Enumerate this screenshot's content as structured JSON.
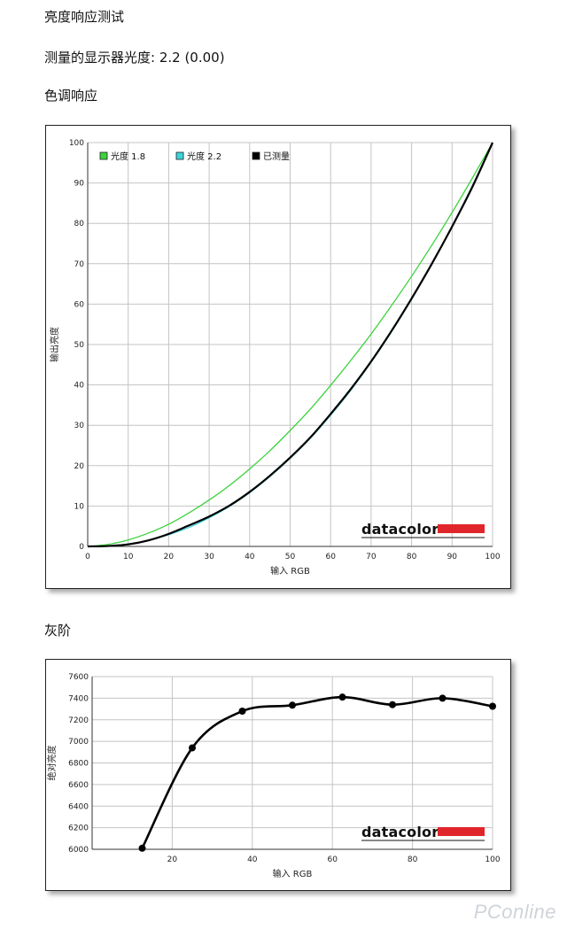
{
  "section_title": "亮度响应测试",
  "measurement_line": "测量的显示器光度:  2.2 (0.00)",
  "tone_response_title": "色调响应",
  "grayscale_title": "灰阶",
  "logo_text": "datacolor",
  "watermark": "PConline",
  "chart_data": [
    {
      "type": "line",
      "xlabel": "输入 RGB",
      "ylabel": "输出亮度",
      "xlim": [
        0,
        100
      ],
      "ylim": [
        0,
        100
      ],
      "x_ticks": [
        0,
        10,
        20,
        30,
        40,
        50,
        60,
        70,
        80,
        90,
        100
      ],
      "y_ticks": [
        0,
        10,
        20,
        30,
        40,
        50,
        60,
        70,
        80,
        90,
        100
      ],
      "grid": true,
      "legend_position": "top-left",
      "series": [
        {
          "name": "光度 1.8",
          "color": "#3cd23c",
          "x": [
            0,
            5,
            10,
            15,
            20,
            25,
            30,
            35,
            40,
            45,
            50,
            55,
            60,
            65,
            70,
            75,
            80,
            85,
            90,
            95,
            100
          ],
          "y": [
            0,
            0.5,
            1.6,
            3.3,
            5.5,
            8.3,
            11.5,
            15.1,
            19.2,
            23.7,
            28.7,
            34.0,
            39.9,
            46.1,
            52.6,
            59.6,
            66.9,
            74.6,
            82.7,
            91.2,
            100
          ]
        },
        {
          "name": "光度 2.2",
          "color": "#3cd4dc",
          "x": [
            0,
            5,
            10,
            15,
            20,
            25,
            30,
            35,
            40,
            45,
            50,
            55,
            60,
            65,
            70,
            75,
            80,
            85,
            90,
            95,
            100
          ],
          "y": [
            0,
            0.1,
            0.6,
            1.5,
            2.9,
            4.7,
            7.1,
            9.9,
            13.3,
            17.3,
            21.8,
            26.8,
            32.5,
            38.7,
            45.6,
            53.1,
            61.2,
            69.9,
            79.3,
            89.3,
            100
          ]
        },
        {
          "name": "已测量",
          "color": "#000000",
          "x": [
            0,
            5,
            10,
            15,
            20,
            25,
            30,
            35,
            40,
            45,
            50,
            55,
            60,
            65,
            70,
            75,
            80,
            85,
            90,
            95,
            100
          ],
          "y": [
            0,
            0.1,
            0.5,
            1.5,
            3.1,
            5.2,
            7.4,
            10.1,
            13.5,
            17.5,
            22.0,
            27.0,
            32.8,
            39.0,
            45.8,
            53.3,
            61.4,
            70.0,
            79.2,
            89.0,
            100
          ]
        }
      ]
    },
    {
      "type": "line",
      "xlabel": "输入 RGB",
      "ylabel": "绝对亮度",
      "xlim": [
        0,
        100
      ],
      "ylim": [
        6000,
        7600
      ],
      "x_ticks": [
        20,
        40,
        60,
        80,
        100
      ],
      "y_ticks": [
        6000,
        6200,
        6400,
        6600,
        6800,
        7000,
        7200,
        7400,
        7600
      ],
      "grid": true,
      "series": [
        {
          "name": "",
          "color": "#000000",
          "x": [
            12.5,
            25,
            37.5,
            50,
            62.5,
            75,
            87.5,
            100
          ],
          "y": [
            6010,
            6940,
            7280,
            7335,
            7410,
            7340,
            7400,
            7325
          ]
        }
      ]
    }
  ]
}
